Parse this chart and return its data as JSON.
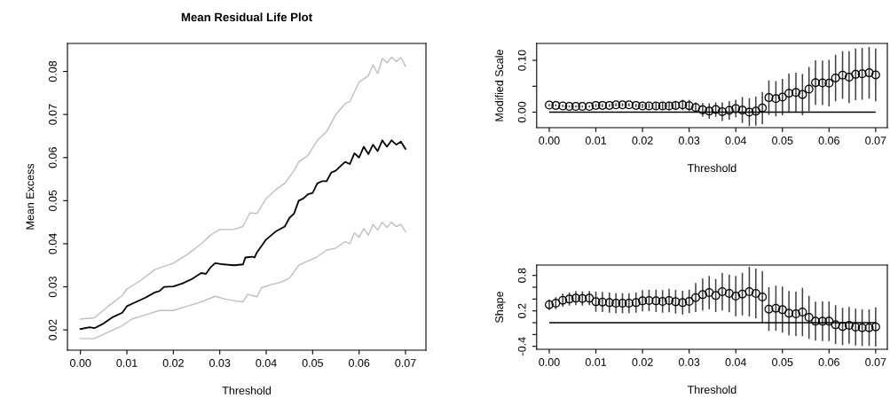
{
  "chart_data": [
    {
      "type": "line",
      "title": "Mean Residual Life Plot",
      "xlabel": "Threshold",
      "ylabel": "Mean Excess",
      "xlim": [
        -0.0028,
        0.0744
      ],
      "ylim": [
        0.0153,
        0.0865
      ],
      "xticks": [
        {
          "value": 0,
          "label": "0.00"
        },
        {
          "value": 0.01,
          "label": "0.01"
        },
        {
          "value": 0.02,
          "label": "0.02"
        },
        {
          "value": 0.03,
          "label": "0.03"
        },
        {
          "value": 0.04,
          "label": "0.04"
        },
        {
          "value": 0.05,
          "label": "0.05"
        },
        {
          "value": 0.06,
          "label": "0.06"
        },
        {
          "value": 0.07,
          "label": "0.07"
        }
      ],
      "yticks": [
        0.02,
        0.03,
        0.04,
        0.05,
        0.06,
        0.07,
        0.08
      ],
      "grid": false,
      "legend": false,
      "marker": "none",
      "line_style": "solid",
      "series": [
        {
          "color": "#bebebe",
          "x": [
            0,
            0.003,
            0.006,
            0.009,
            0.01,
            0.013,
            0.016,
            0.02,
            0.023,
            0.026,
            0.028,
            0.03,
            0.033,
            0.035,
            0.0365,
            0.038,
            0.04,
            0.042,
            0.044,
            0.046,
            0.047,
            0.049,
            0.051,
            0.053,
            0.055,
            0.057,
            0.058,
            0.06,
            0.062,
            0.063,
            0.064,
            0.065,
            0.066,
            0.067,
            0.068,
            0.069,
            0.07
          ],
          "values": [
            0.0225,
            0.0228,
            0.0255,
            0.028,
            0.0295,
            0.0315,
            0.034,
            0.0355,
            0.0375,
            0.04,
            0.042,
            0.0433,
            0.0433,
            0.044,
            0.0472,
            0.047,
            0.0505,
            0.0525,
            0.054,
            0.057,
            0.059,
            0.0605,
            0.064,
            0.066,
            0.07,
            0.0725,
            0.073,
            0.0775,
            0.079,
            0.0815,
            0.0795,
            0.083,
            0.082,
            0.0833,
            0.0823,
            0.0832,
            0.0812
          ]
        },
        {
          "color": "#bebebe",
          "x": [
            0,
            0.003,
            0.006,
            0.009,
            0.011,
            0.014,
            0.017,
            0.02,
            0.023,
            0.026,
            0.029,
            0.031,
            0.033,
            0.035,
            0.036,
            0.038,
            0.039,
            0.041,
            0.043,
            0.045,
            0.047,
            0.049,
            0.051,
            0.053,
            0.055,
            0.057,
            0.058,
            0.059,
            0.06,
            0.061,
            0.062,
            0.063,
            0.064,
            0.065,
            0.066,
            0.067,
            0.068,
            0.069,
            0.07
          ],
          "values": [
            0.018,
            0.018,
            0.0195,
            0.021,
            0.0225,
            0.0235,
            0.0245,
            0.0245,
            0.0255,
            0.0265,
            0.0278,
            0.0272,
            0.0268,
            0.0265,
            0.0283,
            0.0277,
            0.0298,
            0.0305,
            0.031,
            0.032,
            0.035,
            0.036,
            0.037,
            0.0385,
            0.039,
            0.0405,
            0.04,
            0.0425,
            0.0415,
            0.0435,
            0.042,
            0.0445,
            0.0432,
            0.045,
            0.0438,
            0.045,
            0.044,
            0.0445,
            0.0428
          ]
        },
        {
          "color": "#000000",
          "x": [
            0,
            0.002,
            0.003,
            0.005,
            0.007,
            0.009,
            0.01,
            0.012,
            0.014,
            0.016,
            0.017,
            0.018,
            0.02,
            0.022,
            0.024,
            0.026,
            0.027,
            0.028,
            0.029,
            0.031,
            0.033,
            0.035,
            0.0355,
            0.037,
            0.0375,
            0.038,
            0.04,
            0.042,
            0.044,
            0.045,
            0.046,
            0.047,
            0.048,
            0.049,
            0.05,
            0.051,
            0.052,
            0.053,
            0.054,
            0.055,
            0.056,
            0.057,
            0.058,
            0.059,
            0.06,
            0.061,
            0.062,
            0.063,
            0.064,
            0.065,
            0.066,
            0.067,
            0.068,
            0.069,
            0.07
          ],
          "values": [
            0.0202,
            0.0206,
            0.0204,
            0.0215,
            0.023,
            0.024,
            0.0255,
            0.0265,
            0.0275,
            0.0287,
            0.029,
            0.03,
            0.0301,
            0.0308,
            0.0318,
            0.0332,
            0.033,
            0.0345,
            0.0355,
            0.0352,
            0.035,
            0.0352,
            0.0368,
            0.037,
            0.0368,
            0.038,
            0.041,
            0.0428,
            0.044,
            0.046,
            0.047,
            0.05,
            0.0505,
            0.0515,
            0.0518,
            0.054,
            0.0545,
            0.0545,
            0.0565,
            0.057,
            0.058,
            0.059,
            0.0585,
            0.061,
            0.06,
            0.0625,
            0.0608,
            0.063,
            0.0615,
            0.064,
            0.0625,
            0.064,
            0.063,
            0.0637,
            0.062
          ]
        }
      ]
    },
    {
      "type": "scatter",
      "xlabel": "Threshold",
      "ylabel": "Modified Scale",
      "xlim": [
        -0.0027,
        0.0725
      ],
      "ylim": [
        -0.03,
        0.1326
      ],
      "xticks": [
        {
          "value": 0,
          "label": "0.00"
        },
        {
          "value": 0.01,
          "label": "0.01"
        },
        {
          "value": 0.02,
          "label": "0.02"
        },
        {
          "value": 0.03,
          "label": "0.03"
        },
        {
          "value": 0.04,
          "label": "0.04"
        },
        {
          "value": 0.05,
          "label": "0.05"
        },
        {
          "value": 0.06,
          "label": "0.06"
        },
        {
          "value": 0.07,
          "label": "0.07"
        }
      ],
      "yticks": [
        {
          "value": 0,
          "label": "0.00"
        },
        {
          "value": 0.05,
          "label": null
        },
        {
          "value": 0.1,
          "label": "0.10"
        }
      ],
      "grid": false,
      "legend": false,
      "marker": "circle",
      "ref_lines": [
        {
          "axis": "y",
          "value": 0,
          "color": "#000000"
        }
      ],
      "x": [
        0,
        0.0014,
        0.0029,
        0.0043,
        0.0057,
        0.0071,
        0.0086,
        0.01,
        0.0114,
        0.0129,
        0.0143,
        0.0157,
        0.0171,
        0.0186,
        0.02,
        0.0214,
        0.0229,
        0.0243,
        0.0257,
        0.0271,
        0.0286,
        0.03,
        0.0314,
        0.0329,
        0.0343,
        0.0357,
        0.0371,
        0.0386,
        0.04,
        0.0414,
        0.0429,
        0.0443,
        0.0457,
        0.0471,
        0.0486,
        0.05,
        0.0514,
        0.0529,
        0.0543,
        0.0557,
        0.0571,
        0.0586,
        0.06,
        0.0614,
        0.0629,
        0.0643,
        0.0657,
        0.0671,
        0.0686,
        0.07
      ],
      "series": [
        {
          "color": "#000000",
          "values": [
            0.0137,
            0.013,
            0.012,
            0.011,
            0.011,
            0.011,
            0.011,
            0.013,
            0.013,
            0.013,
            0.014,
            0.014,
            0.014,
            0.013,
            0.012,
            0.012,
            0.012,
            0.012,
            0.012,
            0.013,
            0.014,
            0.0125,
            0.009,
            0.0045,
            0.002,
            0.005,
            0.001,
            0.0035,
            0.007,
            0.004,
            0.0,
            0.002,
            0.008,
            0.028,
            0.026,
            0.029,
            0.0365,
            0.038,
            0.034,
            0.0445,
            0.057,
            0.0565,
            0.056,
            0.066,
            0.0715,
            0.0675,
            0.073,
            0.074,
            0.076,
            0.072
          ],
          "errors": [
            0.002,
            0.002,
            0.002,
            0.002,
            0.002,
            0.002,
            0.002,
            0.003,
            0.003,
            0.003,
            0.003,
            0.003,
            0.003,
            0.003,
            0.004,
            0.005,
            0.006,
            0.007,
            0.008,
            0.009,
            0.01,
            0.011,
            0.01,
            0.013,
            0.015,
            0.014,
            0.018,
            0.018,
            0.017,
            0.025,
            0.027,
            0.028,
            0.031,
            0.033,
            0.034,
            0.035,
            0.038,
            0.038,
            0.04,
            0.043,
            0.043,
            0.043,
            0.045,
            0.045,
            0.046,
            0.05,
            0.05,
            0.05,
            0.05,
            0.051
          ]
        }
      ]
    },
    {
      "type": "scatter",
      "xlabel": "Threshold",
      "ylabel": "Shape",
      "xlim": [
        -0.0027,
        0.0725
      ],
      "ylim": [
        -0.45,
        0.975
      ],
      "xticks": [
        {
          "value": 0,
          "label": "0.00"
        },
        {
          "value": 0.01,
          "label": "0.01"
        },
        {
          "value": 0.02,
          "label": "0.02"
        },
        {
          "value": 0.03,
          "label": "0.03"
        },
        {
          "value": 0.04,
          "label": "0.04"
        },
        {
          "value": 0.05,
          "label": "0.05"
        },
        {
          "value": 0.06,
          "label": "0.06"
        },
        {
          "value": 0.07,
          "label": "0.07"
        }
      ],
      "yticks": [
        -0.4,
        {
          "value": -0.2,
          "label": null
        },
        {
          "value": 0,
          "label": null
        },
        0.2,
        {
          "value": 0.4,
          "label": null
        },
        {
          "value": 0.6,
          "label": null
        },
        0.8
      ],
      "grid": false,
      "legend": false,
      "marker": "circle",
      "ref_lines": [
        {
          "axis": "y",
          "value": 0,
          "color": "#000000"
        }
      ],
      "x": [
        0,
        0.0014,
        0.0029,
        0.0043,
        0.0057,
        0.0071,
        0.0086,
        0.01,
        0.0114,
        0.0129,
        0.0143,
        0.0157,
        0.0171,
        0.0186,
        0.02,
        0.0214,
        0.0229,
        0.0243,
        0.0257,
        0.0271,
        0.0286,
        0.03,
        0.0314,
        0.0329,
        0.0343,
        0.0357,
        0.0371,
        0.0386,
        0.04,
        0.0414,
        0.0429,
        0.0443,
        0.0457,
        0.0471,
        0.0486,
        0.05,
        0.0514,
        0.0529,
        0.0543,
        0.0557,
        0.0571,
        0.0586,
        0.06,
        0.0614,
        0.0629,
        0.0643,
        0.0657,
        0.0671,
        0.0686,
        0.07
      ],
      "series": [
        {
          "color": "#000000",
          "values": [
            0.305,
            0.33,
            0.38,
            0.4,
            0.415,
            0.41,
            0.415,
            0.355,
            0.35,
            0.34,
            0.33,
            0.33,
            0.33,
            0.34,
            0.37,
            0.375,
            0.37,
            0.36,
            0.375,
            0.355,
            0.34,
            0.36,
            0.425,
            0.475,
            0.51,
            0.46,
            0.525,
            0.495,
            0.45,
            0.485,
            0.525,
            0.495,
            0.435,
            0.23,
            0.245,
            0.22,
            0.16,
            0.15,
            0.18,
            0.09,
            0.025,
            0.025,
            0.025,
            -0.035,
            -0.065,
            -0.045,
            -0.075,
            -0.085,
            -0.085,
            -0.07
          ],
          "errors": [
            0.09,
            0.1,
            0.11,
            0.11,
            0.12,
            0.12,
            0.12,
            0.17,
            0.17,
            0.17,
            0.17,
            0.17,
            0.17,
            0.17,
            0.18,
            0.18,
            0.19,
            0.19,
            0.2,
            0.2,
            0.2,
            0.2,
            0.245,
            0.27,
            0.28,
            0.28,
            0.32,
            0.32,
            0.34,
            0.36,
            0.42,
            0.42,
            0.44,
            0.37,
            0.38,
            0.39,
            0.375,
            0.375,
            0.41,
            0.365,
            0.33,
            0.335,
            0.335,
            0.33,
            0.315,
            0.31,
            0.31,
            0.31,
            0.31,
            0.33
          ]
        }
      ]
    }
  ]
}
